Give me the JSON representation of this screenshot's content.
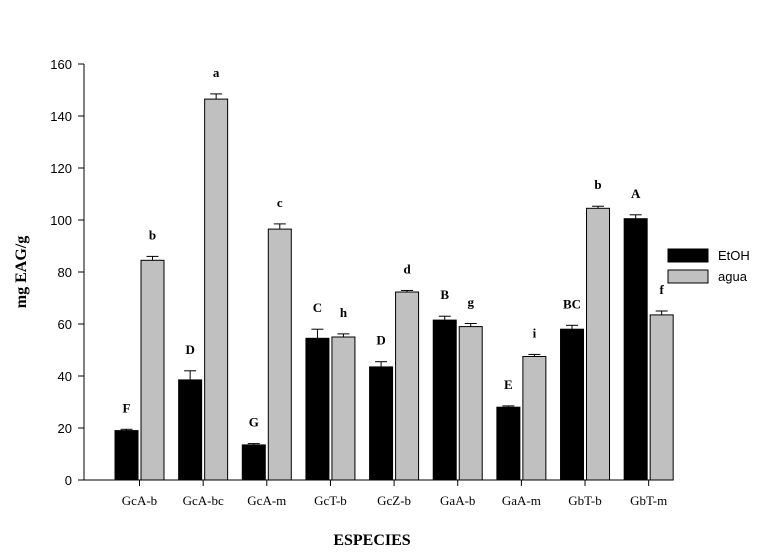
{
  "chart_data": {
    "type": "bar",
    "xlabel": "ESPECIES",
    "ylabel": "mg EAG/g",
    "ylim": [
      0,
      160
    ],
    "yticks": [
      0,
      20,
      40,
      60,
      80,
      100,
      120,
      140,
      160
    ],
    "grid": false,
    "legend_position": "right",
    "categories": [
      "GcA-b",
      "GcA-bc",
      "GcA-m",
      "GcT-b",
      "GcZ-b",
      "GaA-b",
      "GaA-m",
      "GbT-b",
      "GbT-m"
    ],
    "series": [
      {
        "name": "EtOH",
        "color": "#000000",
        "values": [
          19,
          38.5,
          13.5,
          54.5,
          43.5,
          61.5,
          28,
          58,
          100.5
        ],
        "errors": [
          0.5,
          3.5,
          0.5,
          3.5,
          2,
          1.5,
          0.5,
          1.5,
          1.5
        ],
        "labels": [
          "F",
          "D",
          "G",
          "C",
          "D",
          "B",
          "E",
          "BC",
          "A"
        ]
      },
      {
        "name": "agua",
        "color": "#c0c0c0",
        "values": [
          84.5,
          146.5,
          96.5,
          55,
          72.3,
          59,
          47.5,
          104.5,
          63.5
        ],
        "errors": [
          1.5,
          2,
          2,
          1.2,
          0.6,
          1.2,
          0.8,
          0.8,
          1.5
        ],
        "labels": [
          "b",
          "a",
          "c",
          "h",
          "d",
          "g",
          "i",
          "b",
          "f"
        ]
      }
    ]
  }
}
